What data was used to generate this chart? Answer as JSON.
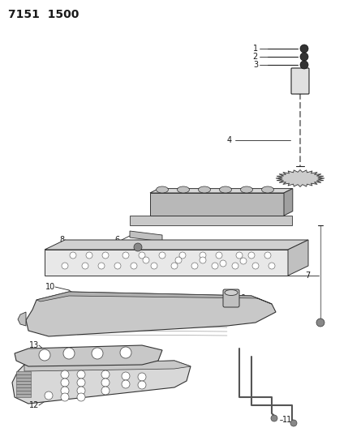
{
  "title": "7151  1500",
  "bg_color": "#ffffff",
  "text_color": "#1a1a1a",
  "title_fontsize": 10,
  "label_fontsize": 7,
  "fig_width": 4.29,
  "fig_height": 5.33,
  "dpi": 100
}
